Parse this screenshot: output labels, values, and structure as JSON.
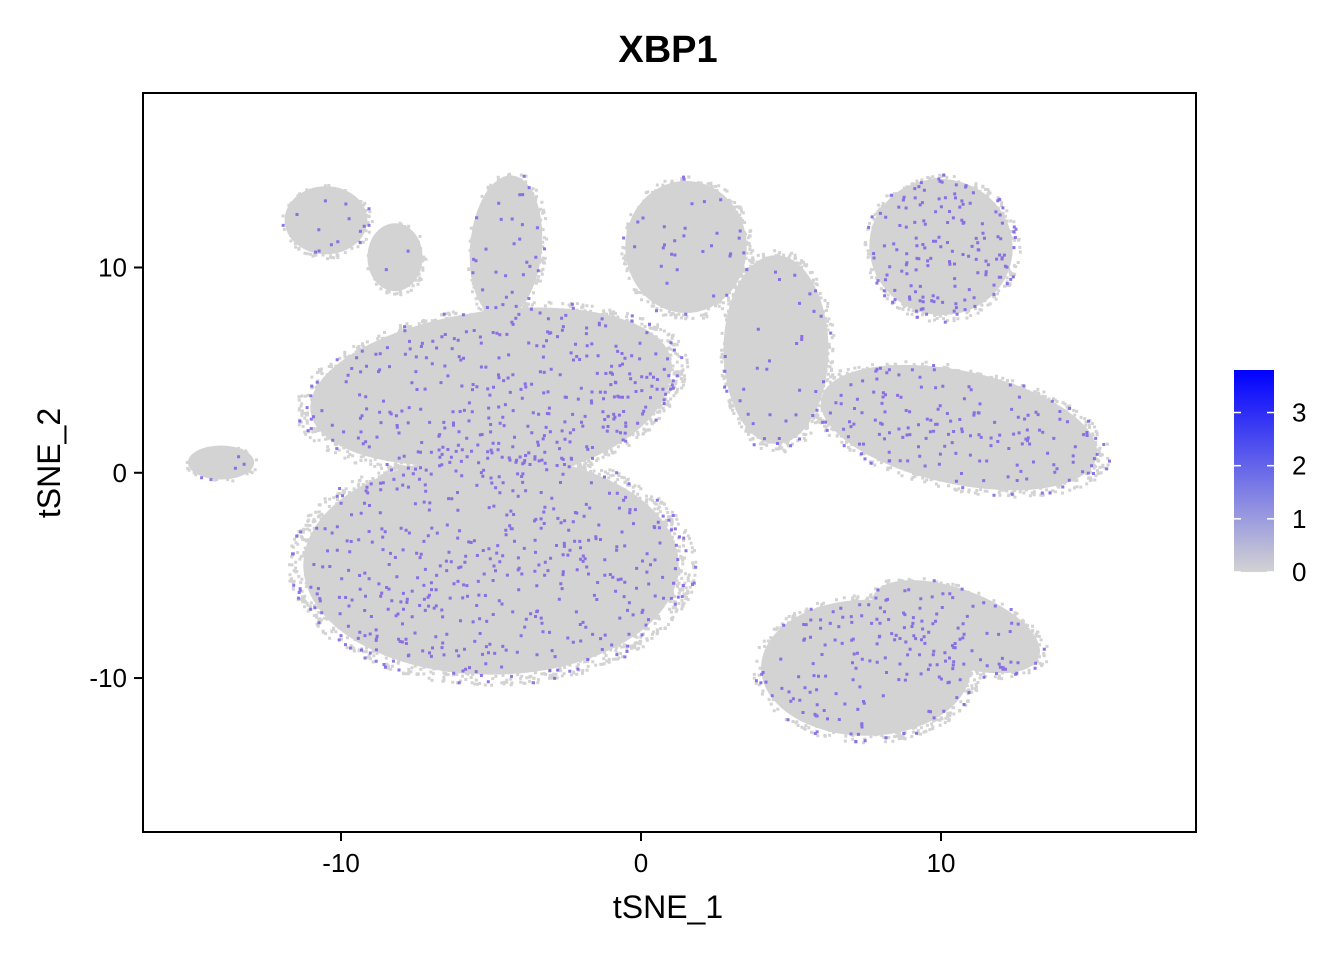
{
  "chart_data": {
    "type": "scatter",
    "title": "XBP1",
    "xlabel": "tSNE_1",
    "ylabel": "tSNE_2",
    "xlim": [
      -16.6,
      18.5
    ],
    "ylim": [
      -17.5,
      18.5
    ],
    "x_ticks": [
      {
        "value": -10,
        "label": "-10"
      },
      {
        "value": 0,
        "label": "0"
      },
      {
        "value": 10,
        "label": "10"
      }
    ],
    "y_ticks": [
      {
        "value": -10,
        "label": "-10"
      },
      {
        "value": 0,
        "label": "0"
      },
      {
        "value": 10,
        "label": "10"
      }
    ],
    "grid": false,
    "legend": {
      "placement": "right",
      "type": "colorbar",
      "min": 0,
      "max": 3.8,
      "low_color": "#d3d3d3",
      "high_color": "#0000ff",
      "ticks": [
        {
          "value": 0,
          "label": "0"
        },
        {
          "value": 1,
          "label": "1"
        },
        {
          "value": 2,
          "label": "2"
        },
        {
          "value": 3,
          "label": "3"
        }
      ]
    },
    "point_colors": {
      "base": "#d3d3d3",
      "expressing": "#7b5ce6"
    },
    "clusters": [
      {
        "center": [
          -5.0,
          -4.5
        ],
        "radii": [
          6.8,
          5.8
        ],
        "rotation": 0,
        "expression": 0.3
      },
      {
        "center": [
          -5.0,
          4.2
        ],
        "radii": [
          6.6,
          4.0
        ],
        "rotation": -8,
        "expression": 0.22
      },
      {
        "center": [
          -2.8,
          3.0
        ],
        "radii": [
          4.2,
          3.0
        ],
        "rotation": -20,
        "expression": 0.2
      },
      {
        "center": [
          -4.5,
          11.0
        ],
        "radii": [
          1.3,
          3.8
        ],
        "rotation": 5,
        "expression": 0.18
      },
      {
        "center": [
          -8.2,
          10.5
        ],
        "radii": [
          1.0,
          1.8
        ],
        "rotation": 0,
        "expression": 0.1
      },
      {
        "center": [
          -10.5,
          12.3
        ],
        "radii": [
          1.5,
          1.8
        ],
        "rotation": 0,
        "expression": 0.16
      },
      {
        "center": [
          1.5,
          11.0
        ],
        "radii": [
          2.2,
          3.5
        ],
        "rotation": 0,
        "expression": 0.1
      },
      {
        "center": [
          4.5,
          6.0
        ],
        "radii": [
          1.9,
          5.0
        ],
        "rotation": 0,
        "expression": 0.12
      },
      {
        "center": [
          10.0,
          11.0
        ],
        "radii": [
          2.6,
          3.6
        ],
        "rotation": 10,
        "expression": 0.42
      },
      {
        "center": [
          10.6,
          2.2
        ],
        "radii": [
          5.1,
          3.0
        ],
        "rotation": 12,
        "expression": 0.28
      },
      {
        "center": [
          7.5,
          -9.5
        ],
        "radii": [
          3.8,
          3.6
        ],
        "rotation": 0,
        "expression": 0.25
      },
      {
        "center": [
          10.5,
          -7.5
        ],
        "radii": [
          3.2,
          2.0
        ],
        "rotation": 20,
        "expression": 0.25
      },
      {
        "center": [
          -14.0,
          0.5
        ],
        "radii": [
          1.2,
          0.9
        ],
        "rotation": 0,
        "expression": 0.06
      }
    ]
  }
}
